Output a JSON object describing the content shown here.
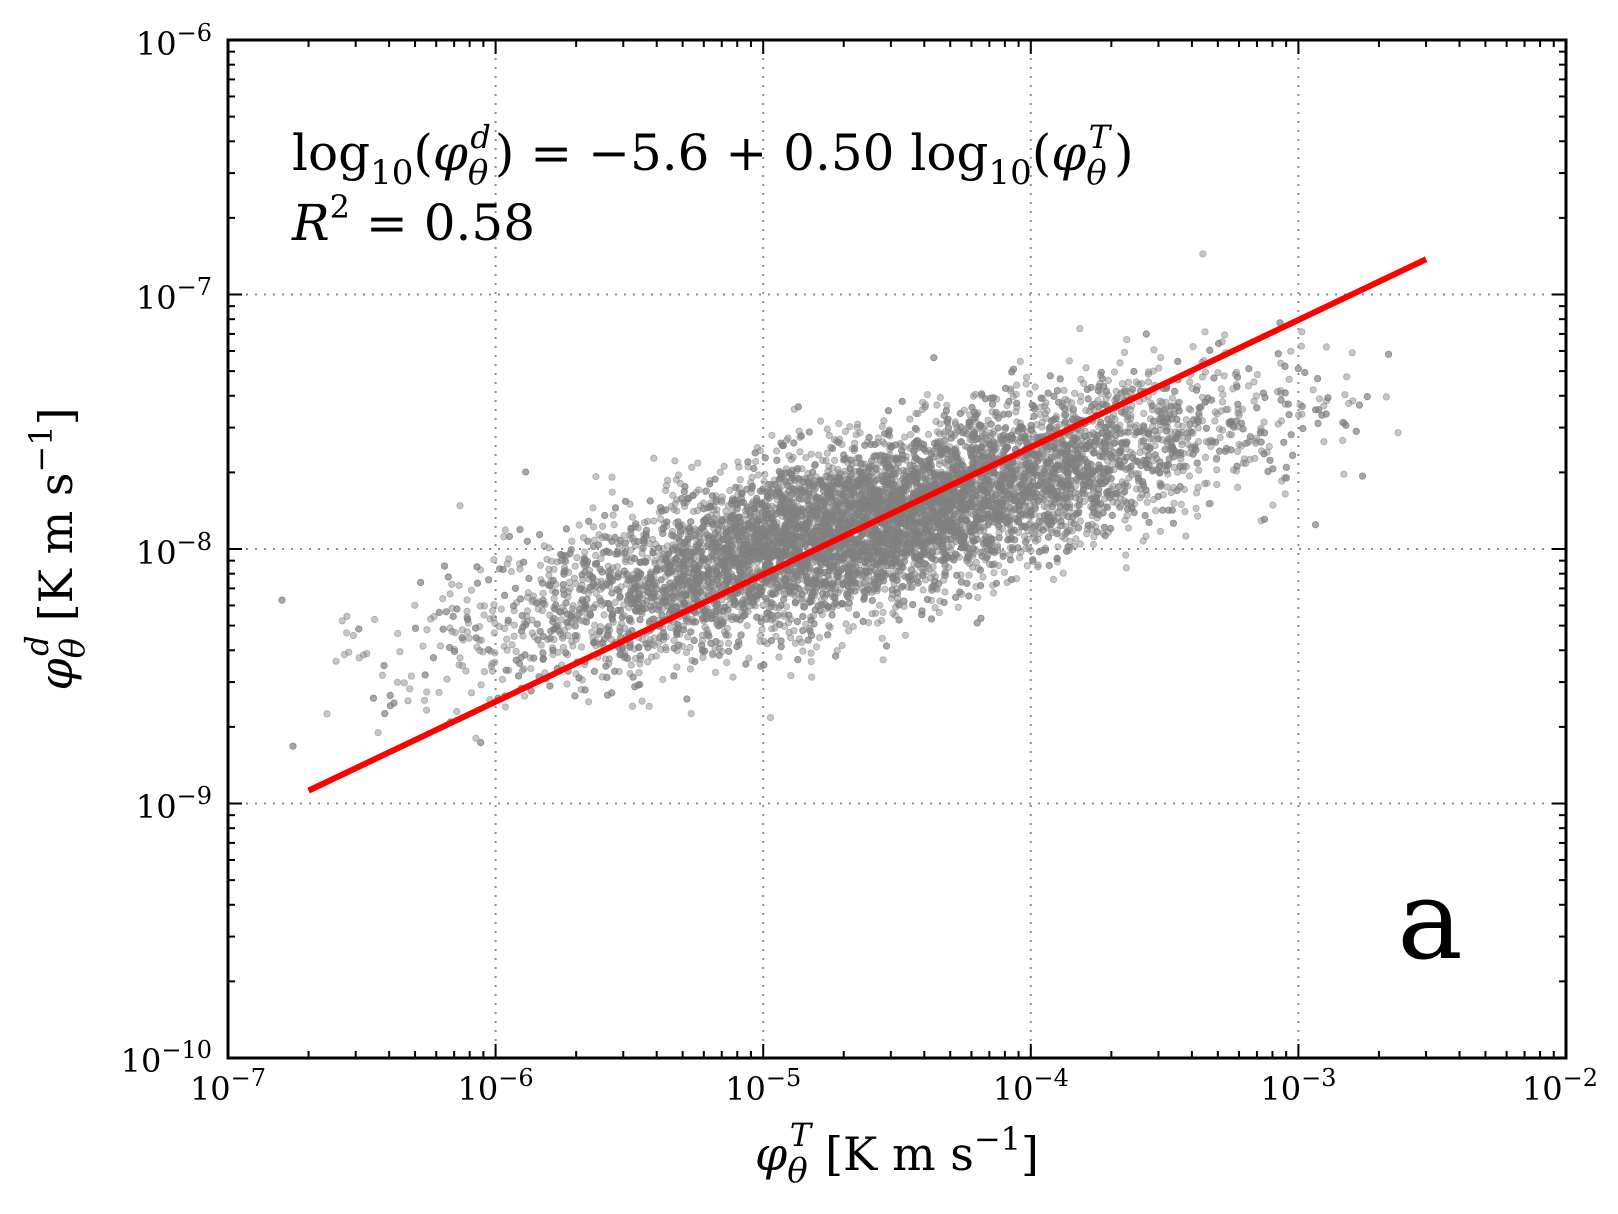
{
  "chart_data": {
    "type": "scatter",
    "x_scale": "log",
    "y_scale": "log",
    "xlim": [
      1e-07,
      0.01
    ],
    "ylim": [
      1e-10,
      1e-06
    ],
    "grid": true,
    "x_ticks": [
      {
        "base": "10",
        "exp": "−7"
      },
      {
        "base": "10",
        "exp": "−6"
      },
      {
        "base": "10",
        "exp": "−5"
      },
      {
        "base": "10",
        "exp": "−4"
      },
      {
        "base": "10",
        "exp": "−3"
      },
      {
        "base": "10",
        "exp": "−2"
      }
    ],
    "y_ticks": [
      {
        "base": "10",
        "exp": "−10"
      },
      {
        "base": "10",
        "exp": "−9"
      },
      {
        "base": "10",
        "exp": "−8"
      },
      {
        "base": "10",
        "exp": "−7"
      },
      {
        "base": "10",
        "exp": "−6"
      }
    ],
    "xlabel": {
      "symbol": "φ",
      "sub": "θ",
      "sup": "T",
      "units": "[K m s",
      "units_sup": "−1",
      "units_close": "]"
    },
    "ylabel": {
      "symbol": "φ",
      "sub": "θ",
      "sup": "d",
      "units": "[K m s",
      "units_sup": "−1",
      "units_close": "]"
    },
    "scatter": {
      "color": "#808080",
      "n_points": 9000,
      "center_log_x": -4.6,
      "center_log_y": -7.9,
      "spread_log_x": 0.65,
      "spread_log_y": 0.25,
      "correlation": 0.76
    },
    "fit_line": {
      "color": "#ff0000",
      "intercept_log": -5.6,
      "slope": 0.5,
      "x_start": 2e-07,
      "x_end": 0.003
    },
    "annotation": {
      "line1": {
        "p1": "log",
        "p1_sub": "10",
        "p2": "(",
        "phi": "φ",
        "phi_sub": "θ",
        "phi_sup": "d",
        "p3": ") = −5.6 + 0.50 log",
        "p3_sub": "10",
        "p4": "(",
        "phi2": "φ",
        "phi2_sub": "θ",
        "phi2_sup": "T",
        "p5": ")"
      },
      "line2": {
        "r": "R",
        "r_sup": "2",
        "rest": " = 0.58"
      }
    },
    "panel_label": "a"
  }
}
